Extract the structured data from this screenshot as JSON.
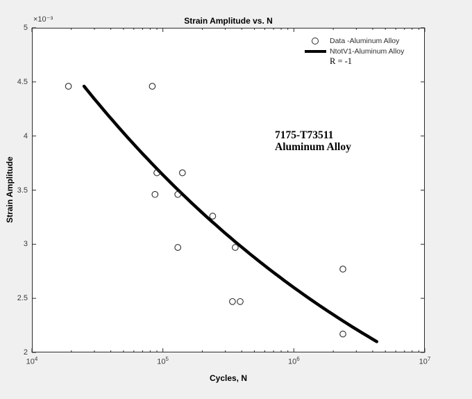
{
  "figure": {
    "background_color": "#f0f0f0",
    "plot_background_color": "#ffffff",
    "axis_color": "#2b2b2b",
    "curve_color": "#000000"
  },
  "chart_data": {
    "type": "scatter",
    "title": "Strain Amplitude vs. N",
    "xlabel": "Cycles, N",
    "ylabel": "Strain Amplitude",
    "y_scale_label": "×10⁻³",
    "x_scale": "log",
    "xlim": [
      10000,
      10000000
    ],
    "x_tick_exponents": [
      4,
      5,
      6,
      7
    ],
    "ylim_e3": [
      2,
      5
    ],
    "y_ticks_e3": [
      2,
      2.5,
      3,
      3.5,
      4,
      4.5,
      5
    ],
    "grid": "off",
    "series": [
      {
        "name": "Data -Aluminum Alloy",
        "type": "scatter",
        "marker": "open-circle",
        "points_N_vs_strain_e3": [
          [
            19000,
            4.46
          ],
          [
            83000,
            4.46
          ],
          [
            90000,
            3.66
          ],
          [
            141000,
            3.66
          ],
          [
            87000,
            3.46
          ],
          [
            130000,
            3.46
          ],
          [
            240000,
            3.26
          ],
          [
            130000,
            2.97
          ],
          [
            357000,
            2.97
          ],
          [
            340000,
            2.47
          ],
          [
            389000,
            2.47
          ],
          [
            2370000,
            2.77
          ],
          [
            2370000,
            2.17
          ]
        ]
      },
      {
        "name": "NtotV1-Aluminum Alloy",
        "type": "line",
        "style": "thick-solid",
        "power_fit_endpoints": {
          "N_start": 25000,
          "strain_start_e3": 4.46,
          "N_end": 4300000,
          "strain_end_e3": 2.1
        }
      }
    ],
    "legend": {
      "position": "top-right",
      "entries": [
        "Data -Aluminum Alloy",
        "NtotV1-Aluminum Alloy",
        "R = -1"
      ]
    },
    "annotation": {
      "line1": "7175-T73511",
      "line2": "Aluminum Alloy"
    }
  }
}
